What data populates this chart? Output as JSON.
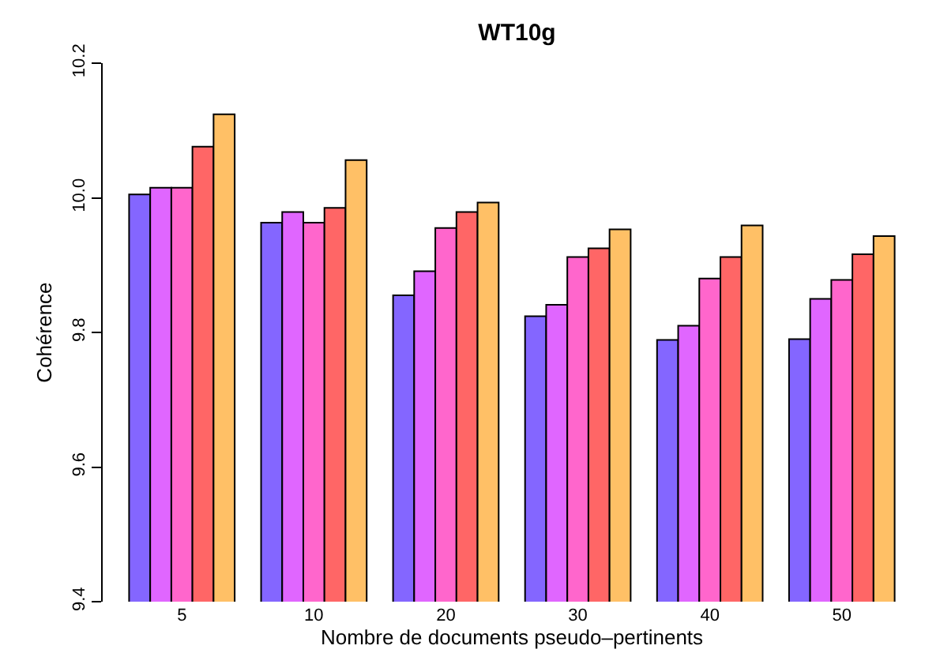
{
  "chart_data": {
    "type": "bar",
    "title": "WT10g",
    "xlabel": "Nombre de documents pseudo–pertinents",
    "ylabel": "Cohérence",
    "categories": [
      "5",
      "10",
      "20",
      "30",
      "40",
      "50"
    ],
    "series": [
      {
        "color": "#8466ff",
        "values": [
          10.005,
          9.963,
          9.855,
          9.824,
          9.789,
          9.79
        ]
      },
      {
        "color": "#e066ff",
        "values": [
          10.015,
          9.979,
          9.891,
          9.841,
          9.81,
          9.85
        ]
      },
      {
        "color": "#ff66cc",
        "values": [
          10.015,
          9.963,
          9.955,
          9.912,
          9.88,
          9.878
        ]
      },
      {
        "color": "#ff6666",
        "values": [
          10.076,
          9.985,
          9.979,
          9.925,
          9.912,
          9.916
        ]
      },
      {
        "color": "#ffc066",
        "values": [
          10.124,
          10.056,
          9.993,
          9.953,
          9.959,
          9.943
        ]
      }
    ],
    "ylim": [
      9.4,
      10.2
    ],
    "yticks": [
      9.4,
      9.6,
      9.8,
      {
        "value": 10.0,
        "label": "10.0"
      },
      10.2
    ],
    "grid": false
  }
}
